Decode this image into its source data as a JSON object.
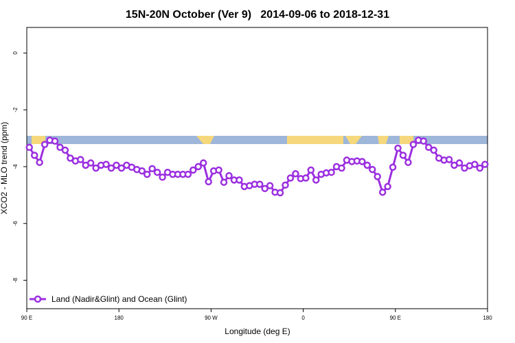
{
  "chart_data": {
    "type": "line",
    "title": "15N-20N October (Ver 9)   2014-09-06 to 2018-12-31",
    "xlabel": "Longitude (deg E)",
    "ylabel": "XCO2 - MLO trend (ppm)",
    "xlim": [
      90,
      540
    ],
    "xticks": [
      {
        "value": 90,
        "label": "90 E"
      },
      {
        "value": 180,
        "label": "180"
      },
      {
        "value": 270,
        "label": "90 W"
      },
      {
        "value": 360,
        "label": "0"
      },
      {
        "value": 450,
        "label": "90 E"
      },
      {
        "value": 540,
        "label": "180"
      }
    ],
    "ylim": [
      -9,
      0.9
    ],
    "yticks": [
      0,
      -2,
      -4,
      -6,
      -8
    ],
    "legend": "bottom-left",
    "x": [
      92.5,
      97.5,
      102.5,
      107.5,
      112.5,
      117.5,
      122.5,
      127.5,
      132.5,
      137.5,
      142.5,
      147.5,
      152.5,
      157.5,
      162.5,
      167.5,
      172.5,
      177.5,
      182.5,
      187.5,
      192.5,
      197.5,
      202.5,
      207.5,
      212.5,
      217.5,
      222.5,
      227.5,
      232.5,
      237.5,
      242.5,
      247.5,
      252.5,
      257.5,
      262.5,
      267.5,
      272.5,
      277.5,
      282.5,
      287.5,
      292.5,
      297.5,
      302.5,
      307.5,
      312.5,
      317.5,
      322.5,
      327.5,
      332.5,
      337.5,
      342.5,
      347.5,
      352.5,
      357.5,
      362.5,
      367.5,
      372.5,
      377.5,
      382.5,
      387.5,
      392.5,
      397.5,
      402.5,
      407.5,
      412.5,
      417.5,
      422.5,
      427.5,
      432.5,
      437.5,
      442.5,
      447.5,
      452.5,
      457.5,
      462.5,
      467.5,
      472.5,
      477.5,
      482.5,
      487.5,
      492.5,
      497.5,
      502.5,
      507.5,
      512.5,
      517.5,
      522.5,
      527.5,
      532.5,
      537.5
    ],
    "series": [
      {
        "name": "Land (Nadir&Glint) and Ocean (Glint)",
        "color": "#9b2fe0",
        "values": [
          -3.32,
          -3.6,
          -3.85,
          -3.22,
          -3.07,
          -3.1,
          -3.32,
          -3.42,
          -3.7,
          -3.8,
          -3.75,
          -3.95,
          -3.87,
          -4.05,
          -3.95,
          -3.92,
          -4.05,
          -3.95,
          -4.05,
          -3.95,
          -4.02,
          -4.1,
          -4.15,
          -4.27,
          -4.07,
          -4.2,
          -4.37,
          -4.2,
          -4.27,
          -4.27,
          -4.27,
          -4.27,
          -4.12,
          -4.0,
          -3.87,
          -4.53,
          -4.15,
          -4.12,
          -4.55,
          -4.32,
          -4.47,
          -4.47,
          -4.7,
          -4.67,
          -4.62,
          -4.62,
          -4.77,
          -4.67,
          -4.9,
          -4.92,
          -4.65,
          -4.4,
          -4.25,
          -4.42,
          -4.4,
          -4.12,
          -4.47,
          -4.27,
          -4.22,
          -4.2,
          -4.0,
          -4.05,
          -3.77,
          -3.82,
          -3.8,
          -3.82,
          -3.95,
          -4.1,
          -4.35,
          -4.9,
          -4.7,
          -4.02,
          -3.35,
          -3.6,
          -3.85,
          -3.22,
          -3.07,
          -3.1,
          -3.32,
          -3.42,
          -3.7,
          -3.77,
          -3.75,
          -3.95,
          -3.87,
          -4.05,
          -3.97,
          -3.92,
          -4.05,
          -3.92
        ]
      }
    ]
  }
}
